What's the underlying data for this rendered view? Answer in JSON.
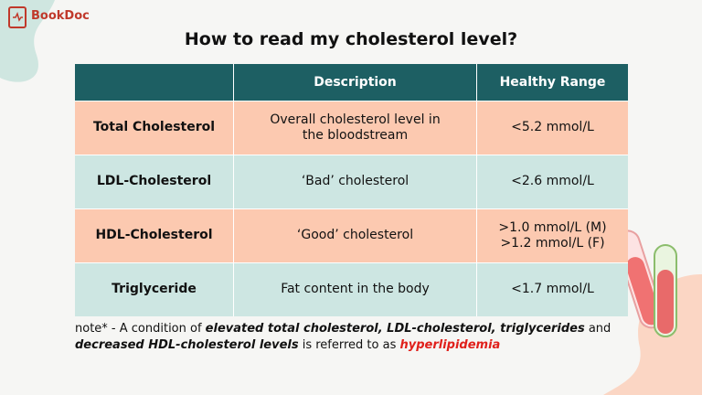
{
  "logo": {
    "name": "BookDoc"
  },
  "header": {
    "title": "How to read my cholesterol level?"
  },
  "table": {
    "columns": [
      "Description",
      "Healthy Range"
    ],
    "rows": [
      {
        "name": "Total Cholesterol",
        "description": "Overall cholesterol level in the bloodstream",
        "range": [
          "<5.2 mmol/L"
        ],
        "tone": "peach"
      },
      {
        "name": "LDL-Cholesterol",
        "description": "‘Bad’ cholesterol",
        "range": [
          "<2.6 mmol/L"
        ],
        "tone": "mint"
      },
      {
        "name": "HDL-Cholesterol",
        "description": "‘Good’ cholesterol",
        "range": [
          ">1.0 mmol/L (M)",
          ">1.2 mmol/L (F)"
        ],
        "tone": "peach"
      },
      {
        "name": "Triglyceride",
        "description": "Fat content in the body",
        "range": [
          "<1.7 mmol/L"
        ],
        "tone": "mint"
      }
    ]
  },
  "note": {
    "segments": [
      {
        "text": "note* - A condition of ",
        "style": "plain"
      },
      {
        "text": "elevated total cholesterol, LDL-cholesterol, triglycerides",
        "style": "emphasis"
      },
      {
        "text": " and ",
        "style": "plain"
      },
      {
        "text": "decreased HDL-cholesterol levels",
        "style": "emphasis"
      },
      {
        "text": " is referred to as ",
        "style": "plain"
      },
      {
        "text": "hyperlipidemia",
        "style": "alert"
      }
    ]
  }
}
